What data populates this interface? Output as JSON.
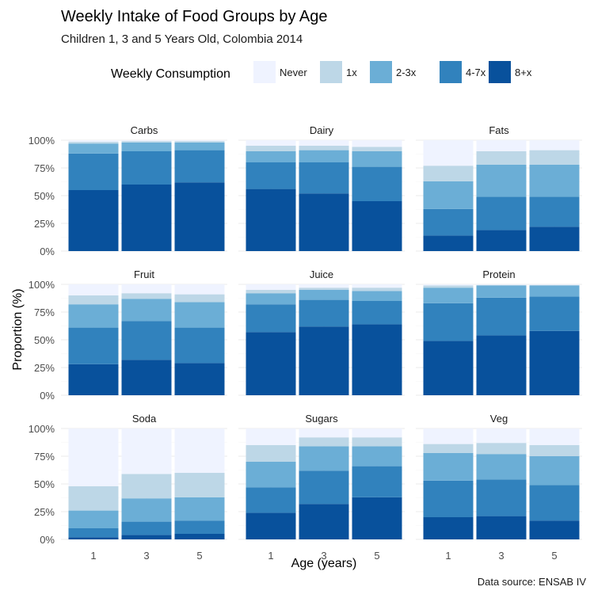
{
  "chart_data": {
    "type": "bar",
    "stacked": true,
    "title": "Weekly Intake of Food Groups by Age",
    "subtitle": "Children 1, 3 and 5 Years Old, Colombia 2014",
    "caption": "Data source: ENSAB IV",
    "xlabel": "Age (years)",
    "ylabel": "Proportion (%)",
    "categories": [
      "1",
      "3",
      "5"
    ],
    "ylim": [
      0,
      100
    ],
    "y_ticks": [
      "0%",
      "25%",
      "50%",
      "75%",
      "100%"
    ],
    "legend": {
      "title": "Weekly Consumption",
      "position": "top",
      "items": [
        {
          "label": "Never",
          "color": "#eff3ff"
        },
        {
          "label": "1x",
          "color": "#bdd7e7"
        },
        {
          "label": "2-3x",
          "color": "#6baed6"
        },
        {
          "label": "4-7x",
          "color": "#3182bd"
        },
        {
          "label": "8+x",
          "color": "#08519c"
        }
      ]
    },
    "stack_order_bottom_to_top": [
      "8+x",
      "4-7x",
      "2-3x",
      "1x",
      "Never"
    ],
    "panels": [
      {
        "name": "Carbs",
        "series": {
          "8+x": [
            55,
            60,
            62
          ],
          "4-7x": [
            33,
            30,
            29
          ],
          "2-3x": [
            9,
            8,
            7
          ],
          "1x": [
            1.5,
            1.2,
            1.2
          ],
          "Never": [
            1.5,
            0.8,
            0.8
          ]
        }
      },
      {
        "name": "Dairy",
        "series": {
          "8+x": [
            56,
            52,
            45
          ],
          "4-7x": [
            24,
            28,
            31
          ],
          "2-3x": [
            10,
            11,
            14
          ],
          "1x": [
            5,
            4,
            4
          ],
          "Never": [
            5,
            5,
            6
          ]
        }
      },
      {
        "name": "Fats",
        "series": {
          "8+x": [
            14,
            19,
            22
          ],
          "4-7x": [
            24,
            30,
            27
          ],
          "2-3x": [
            25,
            29,
            29
          ],
          "1x": [
            14,
            12,
            13
          ],
          "Never": [
            23,
            10,
            9
          ]
        }
      },
      {
        "name": "Fruit",
        "series": {
          "8+x": [
            28,
            32,
            29
          ],
          "4-7x": [
            33,
            35,
            32
          ],
          "2-3x": [
            21,
            20,
            23
          ],
          "1x": [
            8,
            5,
            7
          ],
          "Never": [
            10,
            8,
            9
          ]
        }
      },
      {
        "name": "Juice",
        "series": {
          "8+x": [
            57,
            62,
            64
          ],
          "4-7x": [
            25,
            24,
            21
          ],
          "2-3x": [
            10,
            9,
            9
          ],
          "1x": [
            3,
            2,
            3
          ],
          "Never": [
            5,
            3,
            3
          ]
        }
      },
      {
        "name": "Protein",
        "series": {
          "8+x": [
            49,
            54,
            58
          ],
          "4-7x": [
            34,
            34,
            31
          ],
          "2-3x": [
            14,
            11,
            10
          ],
          "1x": [
            2,
            0.5,
            0.5
          ],
          "Never": [
            1,
            0.5,
            0.5
          ]
        }
      },
      {
        "name": "Soda",
        "series": {
          "8+x": [
            2,
            4,
            5
          ],
          "4-7x": [
            8,
            12,
            12
          ],
          "2-3x": [
            16,
            21,
            21
          ],
          "1x": [
            22,
            22,
            22
          ],
          "Never": [
            52,
            41,
            40
          ]
        }
      },
      {
        "name": "Sugars",
        "series": {
          "8+x": [
            24,
            32,
            38
          ],
          "4-7x": [
            23,
            30,
            28
          ],
          "2-3x": [
            23,
            22,
            18
          ],
          "1x": [
            15,
            8,
            8
          ],
          "Never": [
            15,
            8,
            8
          ]
        }
      },
      {
        "name": "Veg",
        "series": {
          "8+x": [
            20,
            21,
            17
          ],
          "4-7x": [
            33,
            33,
            32
          ],
          "2-3x": [
            25,
            23,
            26
          ],
          "1x": [
            8,
            10,
            10
          ],
          "Never": [
            14,
            13,
            15
          ]
        }
      }
    ]
  }
}
